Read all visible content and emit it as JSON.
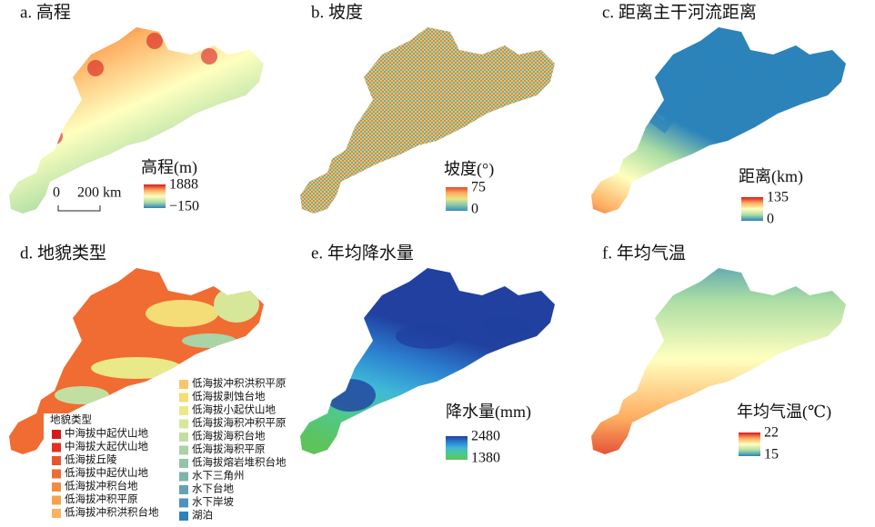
{
  "panels": [
    {
      "title": "a. 高程",
      "legend_title": "高程(m)",
      "legend_max": 1888,
      "legend_min": {
        "value": -150,
        "label": "−150"
      },
      "colors": [
        "#d7191c",
        "#fdae61",
        "#ffffbf",
        "#abdda4",
        "#2b83ba"
      ],
      "scale_bar": [
        "0",
        "200 km"
      ]
    },
    {
      "title": "b. 坡度",
      "legend_title": "坡度(°)",
      "legend_max": 75,
      "legend_min": 0,
      "colors": [
        "#e34a33",
        "#fdae61",
        "#e6e68a",
        "#8cc6a8",
        "#3a8fbf"
      ]
    },
    {
      "title": "c. 距离主干河流距离",
      "legend_title": "距离(km)",
      "legend_max": 135,
      "legend_min": 0,
      "colors": [
        "#d7191c",
        "#fdae61",
        "#ffffbf",
        "#abdda4",
        "#2b83ba"
      ]
    },
    {
      "title": "d. 地貌类型",
      "legend_title": "地貌类型",
      "items": [
        {
          "name": "中海拔中起伏山地",
          "color": "#d7191c"
        },
        {
          "name": "中海拔大起伏山地",
          "color": "#e0301e"
        },
        {
          "name": "低海拔丘陵",
          "color": "#e8552a"
        },
        {
          "name": "低海拔中起伏山地",
          "color": "#f06c32"
        },
        {
          "name": "低海拔冲积台地",
          "color": "#f58a42"
        },
        {
          "name": "低海拔冲积平原",
          "color": "#f7a04f"
        },
        {
          "name": "低海拔冲积洪积台地",
          "color": "#f9b35d"
        },
        {
          "name": "低海拔冲积洪积平原",
          "color": "#fbc66b"
        },
        {
          "name": "低海拔剥蚀台地",
          "color": "#f4dd76"
        },
        {
          "name": "低海拔小起伏山地",
          "color": "#e9e98a"
        },
        {
          "name": "低海拔海积冲积平原",
          "color": "#d6e79a"
        },
        {
          "name": "低海拔海积台地",
          "color": "#c2dfa2"
        },
        {
          "name": "低海拔海积平原",
          "color": "#aad3a6"
        },
        {
          "name": "低海拔熔岩堆积台地",
          "color": "#94c4a8"
        },
        {
          "name": "水下三角州",
          "color": "#7eb3ab"
        },
        {
          "name": "水下台地",
          "color": "#65a3b3"
        },
        {
          "name": "水下岸坡",
          "color": "#4d93bb"
        },
        {
          "name": "湖泊",
          "color": "#2b83ba"
        }
      ]
    },
    {
      "title": "e. 年均降水量",
      "legend_title": "降水量(mm)",
      "legend_max": 2480,
      "legend_min": 1380,
      "colors": [
        "#2140a0",
        "#2b7fd0",
        "#3fb8d8",
        "#4fc98a",
        "#5ec35a"
      ]
    },
    {
      "title": "f. 年均气温",
      "legend_title": "年均气温(℃)",
      "legend_max": 22,
      "legend_min": 15,
      "colors": [
        "#d7191c",
        "#fdae61",
        "#ffffbf",
        "#abdda4",
        "#2b83ba"
      ]
    }
  ]
}
